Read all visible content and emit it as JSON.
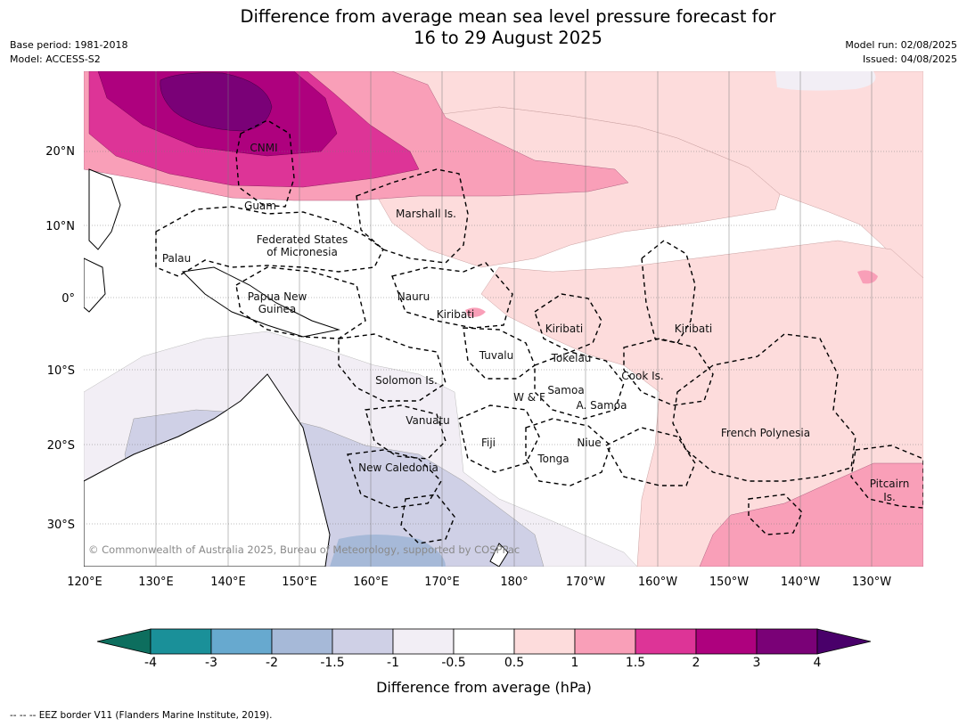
{
  "title_line1": "Difference from average mean sea level pressure forecast for",
  "title_line2": "16 to 29 August 2025",
  "meta": {
    "base_period": "Base period: 1981-2018",
    "model": "Model: ACCESS-S2",
    "model_run": "Model run: 02/08/2025",
    "issued": "Issued: 04/08/2025"
  },
  "copyright": "© Commonwealth of Australia 2025, Bureau of Meteorology, supported by COSPPac",
  "lat_labels": [
    "20°N",
    "10°N",
    "0°",
    "10°S",
    "20°S",
    "30°S"
  ],
  "lon_labels": [
    "120°E",
    "130°E",
    "140°E",
    "150°E",
    "160°E",
    "170°E",
    "180°",
    "170°W",
    "160°W",
    "150°W",
    "140°W",
    "130°W"
  ],
  "place_labels": [
    "CNMI",
    "Guam",
    "Marshall Is.",
    "Federated States",
    "of Micronesia",
    "Palau",
    "Papua New",
    "Guinea",
    "Nauru",
    "Kiribati",
    "Kiribati",
    "Kiribati",
    "Tuvalu",
    "Tokelau",
    "Cook Is.",
    "Solomon Is.",
    "W & F",
    "Samoa",
    "A. Samoa",
    "Vanuatu",
    "Fiji",
    "Niue",
    "Tonga",
    "New Caledonia",
    "French Polynesia",
    "Pitcairn",
    "Is."
  ],
  "colorbar": {
    "title": "Difference from average (hPa)",
    "ticks": [
      "-4",
      "-3",
      "-2",
      "-1.5",
      "-1",
      "-0.5",
      "0.5",
      "1",
      "1.5",
      "2",
      "3",
      "4"
    ],
    "colors": [
      "#0d6e5e",
      "#1a9099",
      "#67a9cf",
      "#a6b9d8",
      "#cfd0e6",
      "#f2eef5",
      "#ffffff",
      "#fddcdc",
      "#f99fb8",
      "#dd3497",
      "#ae017e",
      "#7a0177",
      "#49006a"
    ]
  },
  "footnote": "--  --  -- EEZ border V11 (Flanders Marine Institute, 2019)."
}
